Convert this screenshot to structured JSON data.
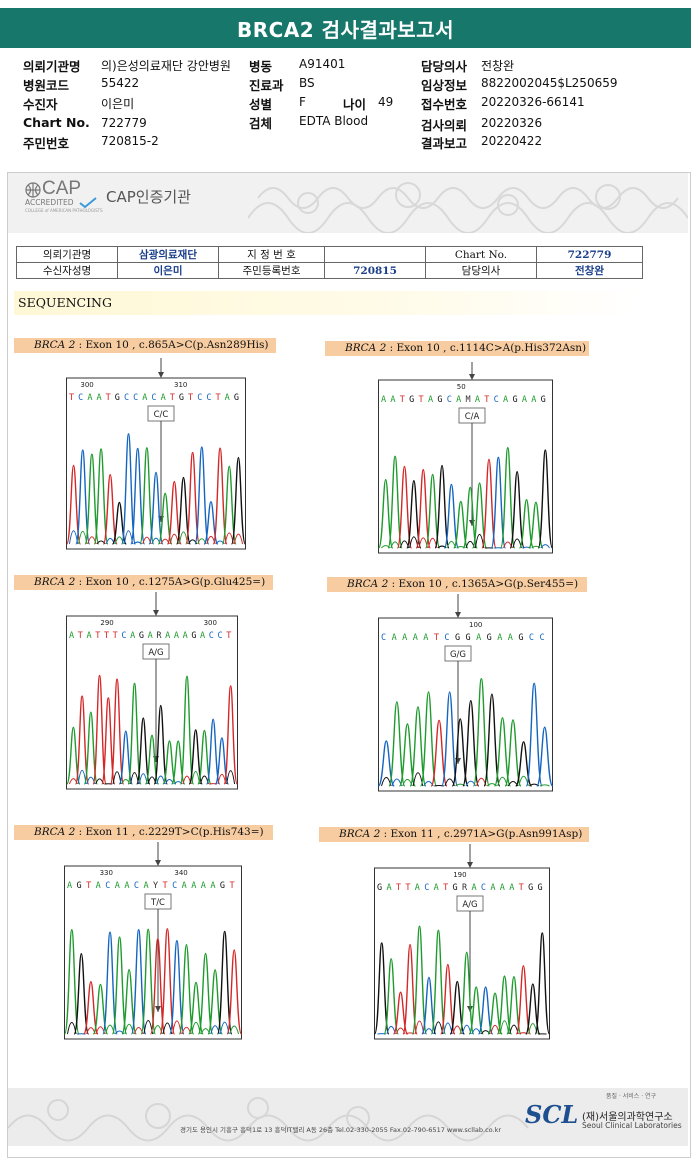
{
  "title": "BRCA2 검사결과보고서",
  "header": {
    "rows": [
      [
        {
          "label": "의뢰기관명",
          "value": "의)은성의료재단 강안병원"
        },
        {
          "label": "병동",
          "value": "A91401"
        },
        {
          "label": "담당의사",
          "value": "전창완"
        }
      ],
      [
        {
          "label": "병원코드",
          "value": "55422"
        },
        {
          "label": "진료과",
          "value": "BS"
        },
        {
          "label": "임상정보",
          "value": "8822002045$L250659"
        }
      ],
      [
        {
          "label": "수진자",
          "value": "이은미"
        },
        {
          "label": "성별",
          "value": "F"
        },
        {
          "label": "접수번호",
          "value": "20220326-66141"
        }
      ],
      [
        {
          "label": "Chart No.",
          "value": "722779"
        },
        {
          "label": "검체",
          "value": "EDTA Blood"
        },
        {
          "label": "검사의뢰",
          "value": "20220326"
        }
      ],
      [
        {
          "label": "주민번호",
          "value": "720815-2"
        },
        {
          "label": "결과보고",
          "value": "20220422"
        }
      ]
    ],
    "age_label": "나이",
    "age_value": "49"
  },
  "cap": {
    "logo_text": "CAP",
    "accredited": "ACCREDITED",
    "small": "COLLEGE of AMERICAN PATHOLOGISTS",
    "label": "CAP인증기관"
  },
  "info_table": {
    "r1": [
      "의뢰기관명",
      "삼광의료재단",
      "지 정 번 호",
      "",
      "Chart No.",
      "722779"
    ],
    "r2": [
      "수신자성명",
      "이은미",
      "주민등록번호",
      "720815",
      "담당의사",
      "전창완"
    ]
  },
  "section_title": "SEQUENCING",
  "colors": {
    "teal": "#17776b",
    "A": "#1f9b2e",
    "C": "#1565c0",
    "G": "#111111",
    "T": "#d42828"
  },
  "panels": [
    {
      "gene": "BRCA 2",
      "desc": " : Exon 10 , c.865A>C(p.Asn289His)",
      "seq": "TCAATGCCACATGTCCTAG",
      "call": "C/C",
      "ticks": [
        "300",
        "310"
      ],
      "peaks": "TCAATGCCACATGTCCTAG"
    },
    {
      "gene": "BRCA 2",
      "desc": " : Exon 10 , c.1114C>A(p.His372Asn)",
      "seq": "AATGTAGCAMATCAGAAG",
      "call": "C/A",
      "ticks": [
        "50"
      ],
      "peaks": "AATGTAGCAAATCAGAAG"
    },
    {
      "gene": "BRCA 2",
      "desc": " : Exon 10 , c.1275A>G(p.Glu425=)",
      "seq": "ATATTTCAGARAAAGACCT",
      "call": "A/G",
      "ticks": [
        "290",
        "300"
      ],
      "peaks": "ATATTTCAGAGAAAGACCT"
    },
    {
      "gene": "BRCA 2",
      "desc": " : Exon 10 , c.1365A>G(p.Ser455=)",
      "seq": "CAAAATCGGAGAAGCC",
      "call": "G/G",
      "ticks": [
        "100"
      ],
      "peaks": "CAAAATCGGAGAAGCC"
    },
    {
      "gene": "BRCA 2",
      "desc": " : Exon 11 , c.2229T>C(p.His743=)",
      "seq": "AGTACAACAYTCAAAAGT",
      "call": "T/C",
      "ticks": [
        "330",
        "340"
      ],
      "peaks": "AGTACAACATTCAAAAGT"
    },
    {
      "gene": "BRCA 2",
      "desc": " : Exon 11 , c.2971A>G(p.Asn991Asp)",
      "seq": "GATTACATGRACAAATGG",
      "call": "A/G",
      "ticks": [
        "190"
      ],
      "peaks": "GATTACATGAACAAATGG"
    }
  ],
  "footer": {
    "address": "경기도 용인시 기흥구 흥덕1로 13 흥덕IT밸리 A동 26층  Tel.02-330-2055  Fax.02-790-6517  www.scllab.co.kr",
    "tagline": "품질 · 서비스 · 연구",
    "logo": "SCL",
    "name_ko": "(재)서울의과학연구소",
    "name_en": "Seoul Clinical Laboratories"
  }
}
